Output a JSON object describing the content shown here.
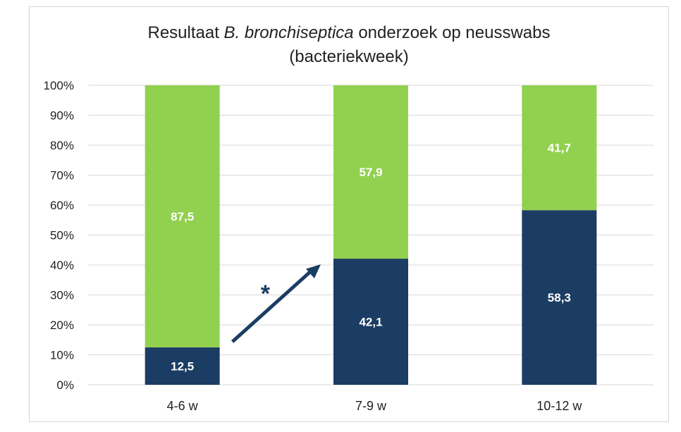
{
  "chart_data": {
    "type": "bar",
    "stacked": true,
    "title_prefix": "Resultaat ",
    "title_italic": "B. bronchiseptica",
    "title_suffix": " onderzoek op neusswabs",
    "subtitle": "(bacteriekweek)",
    "categories": [
      "4-6 w",
      "7-9 w",
      "10-12 w"
    ],
    "series": [
      {
        "color": "#1b3d63",
        "values": [
          12.5,
          42.1,
          58.3
        ],
        "labels": [
          "12,5",
          "42,1",
          "58,3"
        ]
      },
      {
        "color": "#92d050",
        "values": [
          87.5,
          57.9,
          41.7
        ],
        "labels": [
          "87,5",
          "57,9",
          "41,7"
        ]
      }
    ],
    "ylim": [
      0,
      100
    ],
    "yticks": [
      "0%",
      "10%",
      "20%",
      "30%",
      "40%",
      "50%",
      "60%",
      "70%",
      "80%",
      "90%",
      "100%"
    ],
    "grid": true,
    "annotation": {
      "text": "*",
      "arrow_from_category": "4-6 w",
      "arrow_to_category": "7-9 w",
      "color": "#1b3d63"
    }
  }
}
